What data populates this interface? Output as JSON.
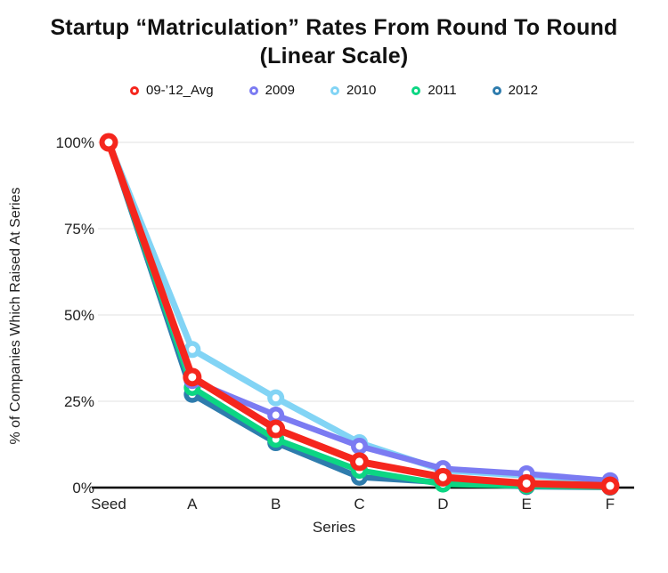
{
  "chart_data": {
    "type": "line",
    "title": "Startup “Matriculation” Rates From Round To Round",
    "subtitle": "(Linear Scale)",
    "xlabel": "Series",
    "ylabel": "% of Companies Which Raised At Series",
    "categories": [
      "Seed",
      "A",
      "B",
      "C",
      "D",
      "E",
      "F"
    ],
    "ylim": [
      0,
      100
    ],
    "grid": true,
    "legend_position": "top",
    "yticks": [
      {
        "label": "0%",
        "value": 0
      },
      {
        "label": "25%",
        "value": 25
      },
      {
        "label": "50%",
        "value": 50
      },
      {
        "label": "75%",
        "value": 75
      },
      {
        "label": "100%",
        "value": 100
      }
    ],
    "series": [
      {
        "name": "09-’12_Avg",
        "color": "#f5261d",
        "values": [
          100,
          32,
          17,
          7.5,
          3,
          1.2,
          0.5
        ],
        "z": 5,
        "line_width": 8,
        "marker_r": 10.5,
        "marker_hole_r": 4.5
      },
      {
        "name": "2009",
        "color": "#7b7bf2",
        "values": [
          100,
          31,
          21,
          12,
          5.5,
          4,
          2
        ],
        "z": 4,
        "line_width": 6.5,
        "marker_r": 9.5,
        "marker_hole_r": 4
      },
      {
        "name": "2010",
        "color": "#82d4f5",
        "values": [
          100,
          40,
          26,
          13,
          5,
          3.5,
          1.8
        ],
        "z": 1,
        "line_width": 7,
        "marker_r": 9.5,
        "marker_hole_r": 4
      },
      {
        "name": "2011",
        "color": "#0cd683",
        "values": [
          100,
          29,
          14,
          5,
          1,
          0.5,
          0.2
        ],
        "z": 3,
        "line_width": 6.5,
        "marker_r": 9.5,
        "marker_hole_r": 4
      },
      {
        "name": "2012",
        "color": "#2e7cad",
        "values": [
          100,
          27,
          13,
          3,
          1.5,
          0.3,
          0.1
        ],
        "z": 2,
        "line_width": 6.5,
        "marker_r": 9.5,
        "marker_hole_r": 4
      }
    ],
    "colors": {
      "grid": "#ebebeb",
      "axis": "#000000",
      "tick_text": "#222222"
    }
  }
}
